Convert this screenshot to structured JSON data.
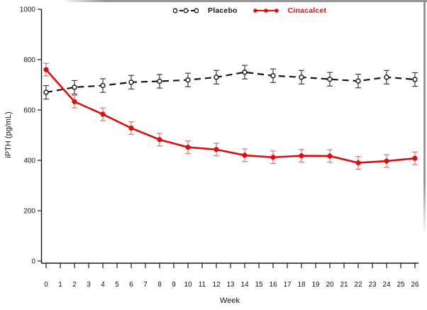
{
  "chart_data": {
    "type": "line",
    "title": "",
    "xlabel": "Week",
    "ylabel": "iPTH (pg/mL)",
    "x": [
      0,
      2,
      4,
      6,
      8,
      10,
      12,
      14,
      16,
      18,
      20,
      22,
      24,
      26
    ],
    "x_ticks": [
      0,
      1,
      2,
      3,
      4,
      5,
      6,
      7,
      8,
      9,
      10,
      11,
      12,
      13,
      14,
      15,
      16,
      17,
      18,
      19,
      20,
      21,
      22,
      23,
      24,
      25,
      26
    ],
    "xlim": [
      0,
      26
    ],
    "ylim": [
      0,
      1000
    ],
    "y_ticks": [
      0,
      200,
      400,
      600,
      800,
      1000
    ],
    "grid": false,
    "legend_position": "top-center",
    "error_bars": true,
    "series": [
      {
        "name": "Placebo",
        "color": "#161616",
        "error_color": "#3c3c3c",
        "line_style": "dashed",
        "marker": "open-circle",
        "values": [
          670,
          690,
          697,
          710,
          714,
          719,
          730,
          750,
          736,
          730,
          722,
          715,
          730,
          721
        ],
        "error": 27
      },
      {
        "name": "Cinacalcet",
        "color": "#d8100f",
        "error_color": "#d07a78",
        "line_style": "solid",
        "marker": "filled-circle",
        "values": [
          760,
          633,
          583,
          528,
          482,
          452,
          443,
          420,
          412,
          418,
          417,
          390,
          397,
          408
        ],
        "error": 25
      }
    ]
  }
}
